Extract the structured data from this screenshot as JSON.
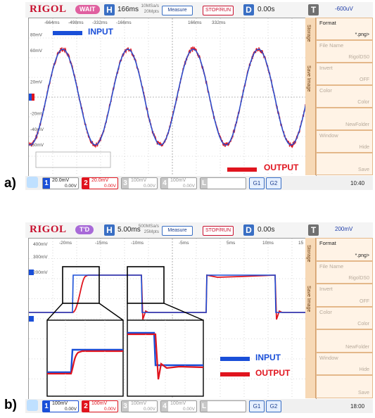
{
  "panel_a": {
    "label": "a)",
    "brand": "RIGOL",
    "status": "WAIT",
    "status_color": "#e060a0",
    "timebase_letter": "H",
    "timebase": "166ms",
    "sample_rate": "10MSa/s",
    "sample_depth": "20Mpts",
    "measure_btn": "Measure",
    "stoprun_btn": "STOP/RUN",
    "delay_letter": "D",
    "delay": "0.00s",
    "trigger_letter": "T",
    "trigger_level": "-600uV",
    "time_ticks": [
      "-664ms",
      "-498ms",
      "-332ms",
      "-166ms",
      "166ms",
      "332ms"
    ],
    "volt_ticks": [
      "80mV",
      "60mV",
      "20mV",
      "-20mV",
      "-40mV",
      "-60mV"
    ],
    "legend_input": "INPUT",
    "legend_output": "OUTPUT",
    "channels": [
      {
        "num": "1",
        "scale": "20.0mV",
        "offset": "0.00V",
        "tag": "B",
        "state": "on",
        "color": "#1a4fd8"
      },
      {
        "num": "2",
        "scale": "20.0mV",
        "offset": "0.00V",
        "tag": "B",
        "state": "on",
        "color": "#e0141e"
      },
      {
        "num": "3",
        "scale": "100mV",
        "offset": "0.00V",
        "tag": "",
        "state": "off",
        "color": "#c8c8c8"
      },
      {
        "num": "4",
        "scale": "100mV",
        "offset": "0.00V",
        "tag": "",
        "state": "off",
        "color": "#c8c8c8"
      }
    ],
    "clock": "10:40",
    "menu_tab_top": "Storage",
    "menu_tab_bottom": "Save Image",
    "menu": [
      {
        "label": "Format",
        "value": "*.png>"
      },
      {
        "label": "File Name",
        "value": "RigolDS0"
      },
      {
        "label": "Invert",
        "value": "OFF"
      },
      {
        "label": "Color",
        "value": "Color"
      },
      {
        "label": "",
        "value": "NewFolder"
      },
      {
        "label": "Window",
        "value": "Hide"
      },
      {
        "label": "",
        "value": "Save"
      }
    ]
  },
  "panel_b": {
    "label": "b)",
    "brand": "RIGOL",
    "status": "T'D",
    "status_color": "#a86ad8",
    "timebase_letter": "H",
    "timebase": "5.00ms",
    "sample_rate": "500MSa/s",
    "sample_depth": "25Mpts",
    "measure_btn": "Measure",
    "stoprun_btn": "STOP/RUN",
    "delay_letter": "D",
    "delay": "0.00s",
    "trigger_letter": "T",
    "trigger_level": "200mV",
    "time_ticks": [
      "-20ms",
      "-15ms",
      "-10ms",
      "-5ms",
      "5ms",
      "10ms",
      "15"
    ],
    "volt_ticks": [
      "400mV",
      "300mV",
      "200mV"
    ],
    "legend_input": "INPUT",
    "legend_output": "OUTPUT",
    "channels": [
      {
        "num": "1",
        "scale": "100mV",
        "offset": "0.00V",
        "tag": "D",
        "state": "on",
        "color": "#1a4fd8"
      },
      {
        "num": "2",
        "scale": "100mV",
        "offset": "0.00V",
        "tag": "D",
        "state": "on",
        "color": "#e0141e"
      },
      {
        "num": "3",
        "scale": "100mV",
        "offset": "0.00V",
        "tag": "",
        "state": "off",
        "color": "#c8c8c8"
      },
      {
        "num": "4",
        "scale": "100mV",
        "offset": "0.00V",
        "tag": "",
        "state": "off",
        "color": "#c8c8c8"
      }
    ],
    "clock": "18:00",
    "menu_tab_top": "Storage",
    "menu_tab_bottom": "Save Image",
    "menu": [
      {
        "label": "Format",
        "value": "*.png>"
      },
      {
        "label": "File Name",
        "value": "RigolDS0"
      },
      {
        "label": "Invert",
        "value": "OFF"
      },
      {
        "label": "Color",
        "value": "Color"
      },
      {
        "label": "",
        "value": "NewFolder"
      },
      {
        "label": "Window",
        "value": "Hide"
      },
      {
        "label": "",
        "value": "Save"
      }
    ]
  }
}
